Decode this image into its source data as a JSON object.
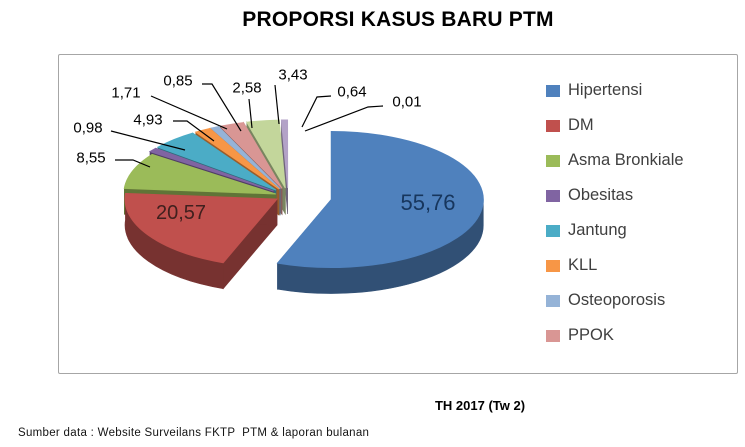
{
  "page": {
    "background": "#ffffff"
  },
  "chart_data": {
    "type": "pie",
    "effect": "3d-exploded",
    "title": "PROPORSI KASUS BARU PTM",
    "footer": "TH 2017 (Tw 2)",
    "source_note": "Sumber data : Website Surveilans FKTP  PTM & laporan bulanan",
    "value_format": "comma-decimal-percent",
    "legend_position": "right",
    "slices": [
      {
        "label": "Hipertensi",
        "value": 55.76,
        "display": "55,76",
        "color": "#4F81BD"
      },
      {
        "label": "DM",
        "value": 20.57,
        "display": "20,57",
        "color": "#C0504D"
      },
      {
        "label": "Asma Bronkiale",
        "value": 8.55,
        "display": "8,55",
        "color": "#9BBB59"
      },
      {
        "label": "Obesitas",
        "value": 0.98,
        "display": "0,98",
        "color": "#8064A2"
      },
      {
        "label": "Jantung",
        "value": 4.93,
        "display": "4,93",
        "color": "#4BACC6"
      },
      {
        "label": "KLL",
        "value": 1.71,
        "display": "1,71",
        "color": "#F79646"
      },
      {
        "label": "Osteoporosis",
        "value": 0.85,
        "display": "0,85",
        "color": "#95B3D7"
      },
      {
        "label": "PPOK",
        "value": 2.58,
        "display": "2,58",
        "color": "#D99694"
      },
      {
        "label": "",
        "value": 3.43,
        "display": "3,43",
        "color": "#C3D69B"
      },
      {
        "label": "",
        "value": 0.64,
        "display": "0,64",
        "color": "#B3A2C7"
      },
      {
        "label": "",
        "value": 0.01,
        "display": "0,01",
        "color": "#92CDDC"
      }
    ],
    "legend_visible_count": 8
  },
  "colors": {
    "plot_border": "#A6A6A6",
    "legend_text": "#3F3F3F",
    "callout_text": "#000000",
    "leader_line": "#000000",
    "inside_label_hipertensi": "#17365D",
    "inside_label_dm": "#40201E"
  }
}
